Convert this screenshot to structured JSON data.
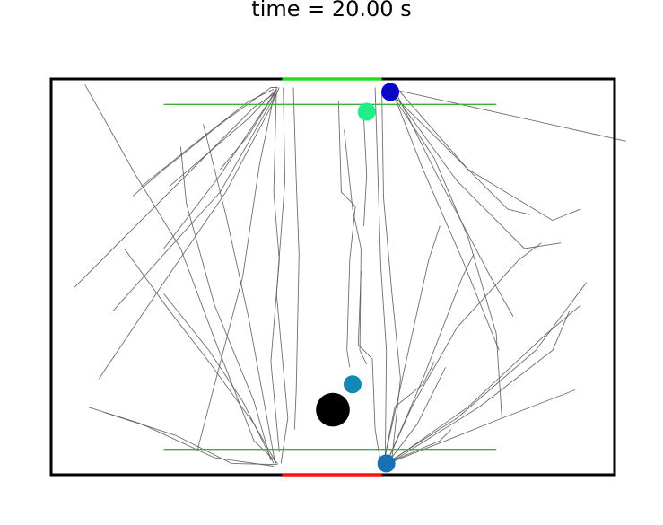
{
  "chart_data": {
    "type": "scatter",
    "title": "time = 20.00 s",
    "xlabel": "",
    "ylabel": "",
    "xlim": [
      0,
      10
    ],
    "ylim": [
      0,
      7
    ],
    "grid": false,
    "exit_top": {
      "x": [
        4.1,
        5.87
      ],
      "y": 7.0,
      "color": "#22dd22"
    },
    "exit_bottom": {
      "x": [
        4.1,
        5.87
      ],
      "y": 0.0,
      "color": "#ff1111"
    },
    "guide_lines": [
      {
        "x": [
          2.0,
          7.9
        ],
        "y": 6.55,
        "color": "#44aa44"
      },
      {
        "x": [
          2.0,
          7.9
        ],
        "y": 0.45,
        "color": "#44aa44"
      }
    ],
    "obstacle": {
      "x": 5.0,
      "y": 1.15,
      "r": 0.3,
      "color": "#000000"
    },
    "agents": [
      {
        "x": 6.02,
        "y": 6.77,
        "color": "#0a06c8"
      },
      {
        "x": 5.6,
        "y": 6.42,
        "color": "#22ee88"
      },
      {
        "x": 5.35,
        "y": 1.6,
        "color": "#1288b5"
      },
      {
        "x": 5.95,
        "y": 0.2,
        "color": "#1870b5"
      }
    ],
    "trajectories": [
      [
        [
          0.6,
          6.9
        ],
        [
          1.5,
          5.3
        ],
        [
          2.3,
          4.0
        ],
        [
          2.9,
          2.4
        ],
        [
          3.6,
          0.6
        ],
        [
          4.02,
          0.2
        ]
      ],
      [
        [
          1.45,
          4.93
        ],
        [
          2.0,
          5.4
        ],
        [
          3.0,
          6.2
        ],
        [
          3.9,
          6.85
        ],
        [
          4.02,
          6.85
        ]
      ],
      [
        [
          1.6,
          5.1
        ],
        [
          2.6,
          5.9
        ],
        [
          3.5,
          6.6
        ],
        [
          3.95,
          6.82
        ]
      ],
      [
        [
          0.4,
          3.3
        ],
        [
          1.5,
          4.4
        ],
        [
          2.6,
          5.5
        ],
        [
          3.6,
          6.5
        ],
        [
          3.97,
          6.75
        ]
      ],
      [
        [
          1.1,
          2.9
        ],
        [
          2.0,
          3.9
        ],
        [
          3.0,
          5.0
        ],
        [
          3.8,
          6.4
        ],
        [
          4.0,
          6.75
        ]
      ],
      [
        [
          0.85,
          1.7
        ],
        [
          2.0,
          3.4
        ],
        [
          3.1,
          5.0
        ],
        [
          3.9,
          6.5
        ],
        [
          4.05,
          6.85
        ]
      ],
      [
        [
          2.1,
          5.1
        ],
        [
          2.8,
          5.7
        ],
        [
          3.5,
          6.3
        ],
        [
          3.98,
          6.8
        ]
      ],
      [
        [
          2.0,
          4.0
        ],
        [
          3.0,
          5.3
        ],
        [
          3.8,
          6.5
        ],
        [
          4.0,
          6.82
        ]
      ],
      [
        [
          3.0,
          5.4
        ],
        [
          3.5,
          6.0
        ],
        [
          4.0,
          6.8
        ]
      ],
      [
        [
          2.3,
          5.8
        ],
        [
          2.4,
          4.8
        ],
        [
          2.9,
          3.0
        ],
        [
          3.6,
          1.3
        ],
        [
          3.9,
          0.25
        ]
      ],
      [
        [
          2.7,
          6.2
        ],
        [
          3.1,
          4.6
        ],
        [
          3.5,
          2.8
        ],
        [
          3.85,
          0.9
        ],
        [
          3.98,
          0.18
        ]
      ],
      [
        [
          2.0,
          3.2
        ],
        [
          2.8,
          2.2
        ],
        [
          3.4,
          1.3
        ],
        [
          3.95,
          0.2
        ]
      ],
      [
        [
          1.3,
          4.0
        ],
        [
          2.1,
          2.9
        ],
        [
          2.8,
          2.0
        ],
        [
          3.6,
          0.9
        ],
        [
          4.0,
          0.2
        ]
      ],
      [
        [
          0.65,
          1.2
        ],
        [
          1.6,
          0.9
        ],
        [
          2.9,
          0.3
        ],
        [
          3.95,
          0.15
        ]
      ],
      [
        [
          0.95,
          1.1
        ],
        [
          2.2,
          0.7
        ],
        [
          3.2,
          0.2
        ],
        [
          4.02,
          0.18
        ]
      ],
      [
        [
          2.6,
          0.45
        ],
        [
          3.4,
          3.5
        ],
        [
          3.7,
          5.5
        ],
        [
          3.98,
          6.82
        ]
      ],
      [
        [
          4.0,
          6.86
        ],
        [
          3.95,
          5.0
        ],
        [
          4.05,
          3.8
        ],
        [
          3.9,
          2.0
        ],
        [
          4.05,
          0.4
        ]
      ],
      [
        [
          4.12,
          6.85
        ],
        [
          4.15,
          5.2
        ],
        [
          4.0,
          3.2
        ],
        [
          4.2,
          1.0
        ],
        [
          4.08,
          0.2
        ]
      ],
      [
        [
          4.3,
          6.85
        ],
        [
          4.35,
          5.2
        ],
        [
          4.4,
          3.9
        ],
        [
          4.35,
          1.5
        ],
        [
          4.32,
          0.8
        ]
      ],
      [
        [
          5.1,
          6.6
        ],
        [
          5.15,
          5.0
        ],
        [
          5.4,
          4.75
        ],
        [
          5.3,
          3.8
        ],
        [
          5.25,
          2.2
        ],
        [
          5.3,
          1.9
        ]
      ],
      [
        [
          5.2,
          6.1
        ],
        [
          5.35,
          4.7
        ],
        [
          5.5,
          4.0
        ],
        [
          5.48,
          2.2
        ],
        [
          5.6,
          1.95
        ]
      ],
      [
        [
          5.55,
          6.3
        ],
        [
          5.6,
          5.3
        ],
        [
          5.55,
          4.4
        ]
      ],
      [
        [
          5.5,
          3.6
        ],
        [
          5.45,
          2.3
        ],
        [
          5.7,
          2.05
        ],
        [
          5.75,
          0.8
        ],
        [
          5.85,
          0.2
        ]
      ],
      [
        [
          5.87,
          6.78
        ],
        [
          5.9,
          4.9
        ],
        [
          6.05,
          3.2
        ],
        [
          6.2,
          1.7
        ],
        [
          6.05,
          0.3
        ]
      ],
      [
        [
          5.75,
          6.85
        ],
        [
          5.8,
          5.3
        ],
        [
          5.85,
          3.7
        ],
        [
          5.95,
          2.2
        ],
        [
          5.93,
          0.3
        ]
      ],
      [
        [
          6.05,
          6.8
        ],
        [
          6.6,
          5.4
        ],
        [
          7.3,
          3.8
        ],
        [
          7.95,
          2.2
        ]
      ],
      [
        [
          6.1,
          6.8
        ],
        [
          6.9,
          5.2
        ],
        [
          7.8,
          3.5
        ],
        [
          8.2,
          2.8
        ]
      ],
      [
        [
          6.0,
          6.85
        ],
        [
          7.2,
          5.2
        ],
        [
          8.4,
          4.0
        ],
        [
          9.05,
          4.1
        ]
      ],
      [
        [
          6.15,
          6.82
        ],
        [
          7.4,
          5.4
        ],
        [
          8.9,
          4.5
        ],
        [
          9.4,
          4.7
        ]
      ],
      [
        [
          6.0,
          6.78
        ],
        [
          7.0,
          5.8
        ],
        [
          8.1,
          4.7
        ],
        [
          8.5,
          4.6
        ]
      ],
      [
        [
          6.05,
          6.82
        ],
        [
          10.2,
          5.9
        ]
      ],
      [
        [
          6.0,
          6.8
        ],
        [
          6.8,
          5.6
        ],
        [
          7.4,
          4.2
        ],
        [
          7.9,
          2.5
        ],
        [
          8.0,
          1.0
        ]
      ],
      [
        [
          5.95,
          0.2
        ],
        [
          6.4,
          1.2
        ],
        [
          7.2,
          2.6
        ],
        [
          8.3,
          3.8
        ],
        [
          8.7,
          4.1
        ]
      ],
      [
        [
          5.95,
          0.2
        ],
        [
          6.6,
          1.7
        ],
        [
          7.3,
          3.5
        ],
        [
          7.5,
          3.9
        ]
      ],
      [
        [
          5.9,
          0.2
        ],
        [
          6.3,
          2.0
        ],
        [
          6.7,
          3.8
        ],
        [
          6.9,
          4.4
        ]
      ],
      [
        [
          5.95,
          0.18
        ],
        [
          6.5,
          0.9
        ],
        [
          7.0,
          1.9
        ]
      ],
      [
        [
          5.98,
          0.2
        ],
        [
          7.0,
          0.6
        ],
        [
          8.0,
          1.0
        ],
        [
          9.3,
          1.5
        ]
      ],
      [
        [
          5.95,
          0.2
        ],
        [
          7.2,
          1.0
        ],
        [
          8.6,
          2.2
        ],
        [
          9.5,
          3.4
        ]
      ],
      [
        [
          5.98,
          0.2
        ],
        [
          7.4,
          1.2
        ],
        [
          8.8,
          2.5
        ],
        [
          9.4,
          3.0
        ]
      ],
      [
        [
          5.95,
          0.2
        ],
        [
          6.9,
          0.6
        ],
        [
          7.1,
          0.8
        ]
      ],
      [
        [
          5.9,
          0.2
        ],
        [
          6.1,
          1.2
        ],
        [
          6.6,
          1.6
        ],
        [
          6.8,
          2.0
        ]
      ],
      [
        [
          6.0,
          0.2
        ],
        [
          7.6,
          1.2
        ],
        [
          8.9,
          2.2
        ],
        [
          9.2,
          2.9
        ]
      ]
    ]
  }
}
